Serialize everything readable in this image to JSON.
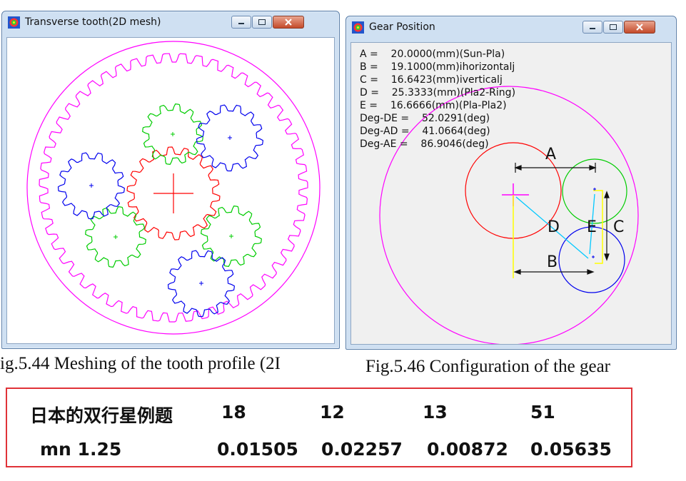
{
  "windows": {
    "left": {
      "title": "Transverse tooth(2D mesh)",
      "icon": "app-color-icon"
    },
    "right": {
      "title": "Gear Position",
      "icon": "app-color-icon"
    }
  },
  "gear_position": {
    "lines": [
      "A =    20.0000(mm)(Sun-Pla)",
      "B =    19.1000(mm)ihorizontalj",
      "C =    16.6423(mm)iverticalj",
      "D =    25.3333(mm)(Pla2-Ring)",
      "E =    16.6666(mm)(Pla-Pla2)",
      "Deg-DE =    52.0291(deg)",
      "Deg-AD =    41.0664(deg)",
      "Deg-AE =    86.9046(deg)"
    ],
    "diagram_labels": {
      "A": "A",
      "B": "B",
      "C": "C",
      "D": "D",
      "E": "E"
    }
  },
  "captions": {
    "left": "ig.5.44 Meshing of the tooth profile (2I",
    "right": "Fig.5.46 Configuration of the gear"
  },
  "table": {
    "row1": [
      "日本的双行星例题",
      "18",
      "12",
      "13",
      "51"
    ],
    "row2": [
      "mn 1.25",
      "0.01505",
      "0.02257",
      "0.00872",
      "0.05635"
    ]
  },
  "colors": {
    "ring": "#ff00ff",
    "sun": "#ff0000",
    "planet_green": "#00cc00",
    "planet_blue": "#0000ee",
    "axis_cyan": "#00c8ff",
    "guide_yellow": "#ffff00",
    "table_border": "#e03238"
  }
}
